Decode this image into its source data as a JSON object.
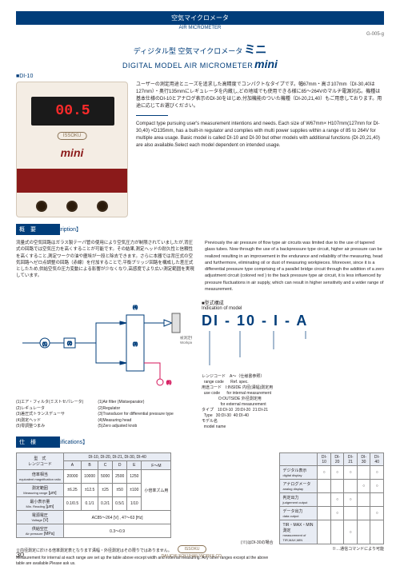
{
  "header": {
    "category_jp": "空気マイクロメータ",
    "category_en": "AIR MICROMETER",
    "code": "G-005-g"
  },
  "title": {
    "jp_pre": "ディジタル型 空気マイクロメータ",
    "jp_big": "ミニ",
    "en_pre": "DIGITAL MODEL AIR MICROMETER",
    "en_big": "mini"
  },
  "model_label": "■DI-10",
  "device": {
    "display": "00.5",
    "logo": "ISSOKU",
    "mini": "mini"
  },
  "hero": {
    "jp": "ユーザーの測定用途とニーズを追求した高精度でコンパクトなタイプです。幅67mm・高さ107mm（DI-30,40は127mm）・奥行135mmにレギュレータを内蔵し,どの地域でも使用できる様に85～264Vのマルチ電源対応。機種は基本仕様のDI-10とアナログ表示のDI-30をはじめ,付加機能のついた機種（DI-20,21,40）もご用意しております。用途に応じてお選びください。",
    "en": "Compact type pursuing user's measurement intentions and needs. Each size of W67mm× H107mm(127mm for DI-30,40) ×D135mm, has a built-in regulator and complies with multi power supplies within a range of 85 to 264V for multiple area usage. Basic model is called DI-10 and DI-30 but other models with additional functions (DI-20,21,40) are also available.Select each model dependent on intended usage."
  },
  "sections": {
    "desc_jp": "概　要",
    "desc_en": "【Description】",
    "spec_jp": "仕　様",
    "spec_en": "【Specifications】"
  },
  "desc": {
    "jp": "流量式の空気回路はガラス製テーパ管の使用により空気圧力が制限されていましたが,背圧式の回路では空気圧力を高くすることが可能です。その結果,測定ヘッドの耐久性と信頼性を高くすること,測定ワークの油や塵埃が一段と除去できます。さらに本器では背圧式の空気回路へゼロ点調整の回路（赤線）を付加することで,平衡ブリッジ回路を構成した差圧式としたため,供給空気の圧力変動による影響が少なくなり,高感度でより広い測定範囲を実現しています。",
    "en": "Previously the air pressure of flow type air circuits was limited due to the use of tapered glass tubes. Now through the use of a backpressure type circuit, higher air pressure can be realized resulting in an improvement in the endurance and reliability of the measuring, head and furthermore, eliminating oil or dust of measuring workpieces. Moreover, since it is a differential pressure type comprising of a parallel bridge circuit through the addition of a zero adjustment circuit (colored red ) to the back pressure type air circuit, it is less influenced by pressure fluctuations in air supply, which can result in higher sensitivity and a wider range of measurement."
  },
  "circuit": {
    "colors": {
      "line": "#003d7a",
      "red": "#d4145a",
      "gray": "#666"
    },
    "labels": {
      "workpiece_jp": "被測定物",
      "workpiece_en": "Workpiece"
    },
    "legend_jp": [
      "(1)エア・フィルタ(ミストセパレータ)",
      "(2)レギュレータ",
      "(3)差圧式トランスデューサ",
      "(4)測定ヘッド",
      "(5)零調整つまみ"
    ],
    "legend_en": [
      "(1)Air filter (Mistseparator)",
      "(2)Regulator",
      "(3)Transducer for differential pressure type",
      "(4)Measuring head",
      "(5)Zero adjusted knob"
    ]
  },
  "modelind": {
    "label_jp": "■型式構成",
    "label_en": "Indication of model",
    "code": "DI - 10 - I - A",
    "notes": [
      "レンジコード　A～（仕様書参照）\n  range code      Ref. spec.",
      "用途コード　I:INSIDE 内径(溝幅)測定用\n  use code      for internal measurement\n               O:OUTSIDE 外径測定用\n                 for external measurement",
      "タイプ　10:DI-10  20:DI-20  21:DI-21\n  Type   30:DI-30  40:DI-40",
      "モデル名\n  model name"
    ],
    "side_note": "DI-30ではA指定不可"
  },
  "spec1": {
    "head": {
      "model": "型　式",
      "range": "レンジコード",
      "magr": "倍率相当",
      "magnification": "equivalent magnification ratio"
    },
    "models": "DI-10, DI-20, DI-21, DI-30, DI-40",
    "cols": [
      "A",
      "B",
      "C",
      "D",
      "E",
      "F～M"
    ],
    "rows": [
      {
        "label": "倍率相当",
        "sub": "equivalent magnification ratio",
        "unit": "",
        "vals": [
          "20000",
          "10000",
          "5000",
          "2500",
          "1250",
          "小倍率ズム用"
        ]
      },
      {
        "label": "測定範囲",
        "sub": "Measuring range",
        "unit": "[μm]",
        "vals": [
          "±6.25",
          "±12.5",
          "±25",
          "±50",
          "±100",
          ""
        ]
      },
      {
        "label": "最小表示量",
        "sub": "Min. Reading",
        "unit": "[μm]",
        "vals": [
          "0.1/0.5",
          "0.1/1",
          "0.2/1",
          "0.5/1",
          "1/10",
          ""
        ]
      },
      {
        "label": "電源電圧",
        "sub": "Voltage",
        "unit": "[V]",
        "vals_merged": "AC85～264 [V] , 47～63 [Hz]"
      },
      {
        "label": "供給空圧",
        "sub": "Air pressure",
        "unit": "[MPa]",
        "vals_merged": "0.3～0.9"
      }
    ],
    "foot_star": "(※)はDI-30の場合",
    "foot_jp": "※内径測定に於ける倍率測定表となります溝幅・外径測定はその限りではありません。",
    "foot_en": "Measurement for internal at each range are set up the table above except width and external measuring.\nAny other ranges except at the above table are available.Please ask us."
  },
  "spec2": {
    "cols": [
      "",
      "DI-10",
      "DI-20",
      "DI-21",
      "DI-30",
      "DI-40"
    ],
    "rows": [
      {
        "jp": "デジタル表示",
        "en": "digital display",
        "marks": [
          "○",
          "○",
          "○",
          "",
          "○"
        ]
      },
      {
        "jp": "アナログメータ",
        "en": "analog display",
        "marks": [
          "",
          "",
          "",
          "○",
          "○"
        ]
      },
      {
        "jp": "判定出力",
        "en": "judgement output",
        "marks": [
          "",
          "○",
          "○",
          "",
          ""
        ]
      },
      {
        "jp": "データ出力",
        "en": "data output",
        "marks": [
          "",
          "○",
          "",
          "",
          "○"
        ]
      },
      {
        "jp": "TIR・MAX・MIN測定",
        "en": "measurement of TIR,MAX,MIN",
        "marks": [
          "",
          "",
          "○",
          "",
          ""
        ]
      }
    ],
    "foot": "※…通信コマンドにより可能"
  },
  "footer": {
    "page": "30",
    "logo": "ISSOKU",
    "company": "DAI-ICHI SOKUHAN WORKS CO."
  }
}
